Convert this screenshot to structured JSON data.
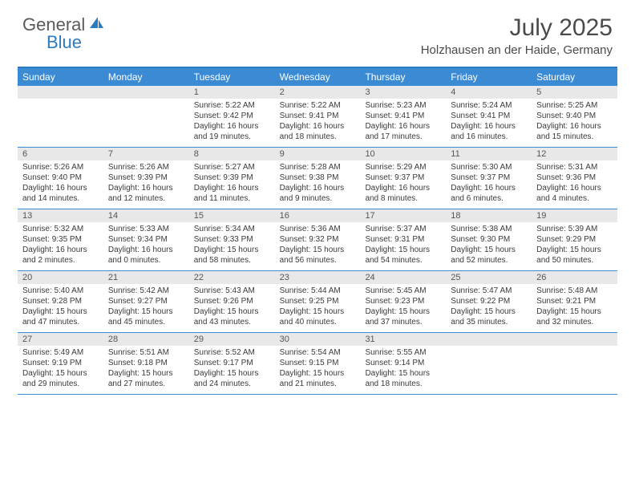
{
  "logo": {
    "part1": "General",
    "part2": "Blue"
  },
  "title": "July 2025",
  "location": "Holzhausen an der Haide, Germany",
  "colors": {
    "header_bg": "#3b8bd4",
    "header_border": "#2d7bc0",
    "daynum_bg": "#e8e8e8",
    "text": "#3a3a3a",
    "logo_gray": "#5a5a5a",
    "logo_blue": "#2d7bc0"
  },
  "day_headers": [
    "Sunday",
    "Monday",
    "Tuesday",
    "Wednesday",
    "Thursday",
    "Friday",
    "Saturday"
  ],
  "weeks": [
    {
      "nums": [
        "",
        "",
        "1",
        "2",
        "3",
        "4",
        "5"
      ],
      "cells": [
        null,
        null,
        {
          "sunrise": "5:22 AM",
          "sunset": "9:42 PM",
          "daylight": "16 hours and 19 minutes."
        },
        {
          "sunrise": "5:22 AM",
          "sunset": "9:41 PM",
          "daylight": "16 hours and 18 minutes."
        },
        {
          "sunrise": "5:23 AM",
          "sunset": "9:41 PM",
          "daylight": "16 hours and 17 minutes."
        },
        {
          "sunrise": "5:24 AM",
          "sunset": "9:41 PM",
          "daylight": "16 hours and 16 minutes."
        },
        {
          "sunrise": "5:25 AM",
          "sunset": "9:40 PM",
          "daylight": "16 hours and 15 minutes."
        }
      ]
    },
    {
      "nums": [
        "6",
        "7",
        "8",
        "9",
        "10",
        "11",
        "12"
      ],
      "cells": [
        {
          "sunrise": "5:26 AM",
          "sunset": "9:40 PM",
          "daylight": "16 hours and 14 minutes."
        },
        {
          "sunrise": "5:26 AM",
          "sunset": "9:39 PM",
          "daylight": "16 hours and 12 minutes."
        },
        {
          "sunrise": "5:27 AM",
          "sunset": "9:39 PM",
          "daylight": "16 hours and 11 minutes."
        },
        {
          "sunrise": "5:28 AM",
          "sunset": "9:38 PM",
          "daylight": "16 hours and 9 minutes."
        },
        {
          "sunrise": "5:29 AM",
          "sunset": "9:37 PM",
          "daylight": "16 hours and 8 minutes."
        },
        {
          "sunrise": "5:30 AM",
          "sunset": "9:37 PM",
          "daylight": "16 hours and 6 minutes."
        },
        {
          "sunrise": "5:31 AM",
          "sunset": "9:36 PM",
          "daylight": "16 hours and 4 minutes."
        }
      ]
    },
    {
      "nums": [
        "13",
        "14",
        "15",
        "16",
        "17",
        "18",
        "19"
      ],
      "cells": [
        {
          "sunrise": "5:32 AM",
          "sunset": "9:35 PM",
          "daylight": "16 hours and 2 minutes."
        },
        {
          "sunrise": "5:33 AM",
          "sunset": "9:34 PM",
          "daylight": "16 hours and 0 minutes."
        },
        {
          "sunrise": "5:34 AM",
          "sunset": "9:33 PM",
          "daylight": "15 hours and 58 minutes."
        },
        {
          "sunrise": "5:36 AM",
          "sunset": "9:32 PM",
          "daylight": "15 hours and 56 minutes."
        },
        {
          "sunrise": "5:37 AM",
          "sunset": "9:31 PM",
          "daylight": "15 hours and 54 minutes."
        },
        {
          "sunrise": "5:38 AM",
          "sunset": "9:30 PM",
          "daylight": "15 hours and 52 minutes."
        },
        {
          "sunrise": "5:39 AM",
          "sunset": "9:29 PM",
          "daylight": "15 hours and 50 minutes."
        }
      ]
    },
    {
      "nums": [
        "20",
        "21",
        "22",
        "23",
        "24",
        "25",
        "26"
      ],
      "cells": [
        {
          "sunrise": "5:40 AM",
          "sunset": "9:28 PM",
          "daylight": "15 hours and 47 minutes."
        },
        {
          "sunrise": "5:42 AM",
          "sunset": "9:27 PM",
          "daylight": "15 hours and 45 minutes."
        },
        {
          "sunrise": "5:43 AM",
          "sunset": "9:26 PM",
          "daylight": "15 hours and 43 minutes."
        },
        {
          "sunrise": "5:44 AM",
          "sunset": "9:25 PM",
          "daylight": "15 hours and 40 minutes."
        },
        {
          "sunrise": "5:45 AM",
          "sunset": "9:23 PM",
          "daylight": "15 hours and 37 minutes."
        },
        {
          "sunrise": "5:47 AM",
          "sunset": "9:22 PM",
          "daylight": "15 hours and 35 minutes."
        },
        {
          "sunrise": "5:48 AM",
          "sunset": "9:21 PM",
          "daylight": "15 hours and 32 minutes."
        }
      ]
    },
    {
      "nums": [
        "27",
        "28",
        "29",
        "30",
        "31",
        "",
        ""
      ],
      "cells": [
        {
          "sunrise": "5:49 AM",
          "sunset": "9:19 PM",
          "daylight": "15 hours and 29 minutes."
        },
        {
          "sunrise": "5:51 AM",
          "sunset": "9:18 PM",
          "daylight": "15 hours and 27 minutes."
        },
        {
          "sunrise": "5:52 AM",
          "sunset": "9:17 PM",
          "daylight": "15 hours and 24 minutes."
        },
        {
          "sunrise": "5:54 AM",
          "sunset": "9:15 PM",
          "daylight": "15 hours and 21 minutes."
        },
        {
          "sunrise": "5:55 AM",
          "sunset": "9:14 PM",
          "daylight": "15 hours and 18 minutes."
        },
        null,
        null
      ]
    }
  ],
  "labels": {
    "sunrise": "Sunrise:",
    "sunset": "Sunset:",
    "daylight": "Daylight:"
  }
}
